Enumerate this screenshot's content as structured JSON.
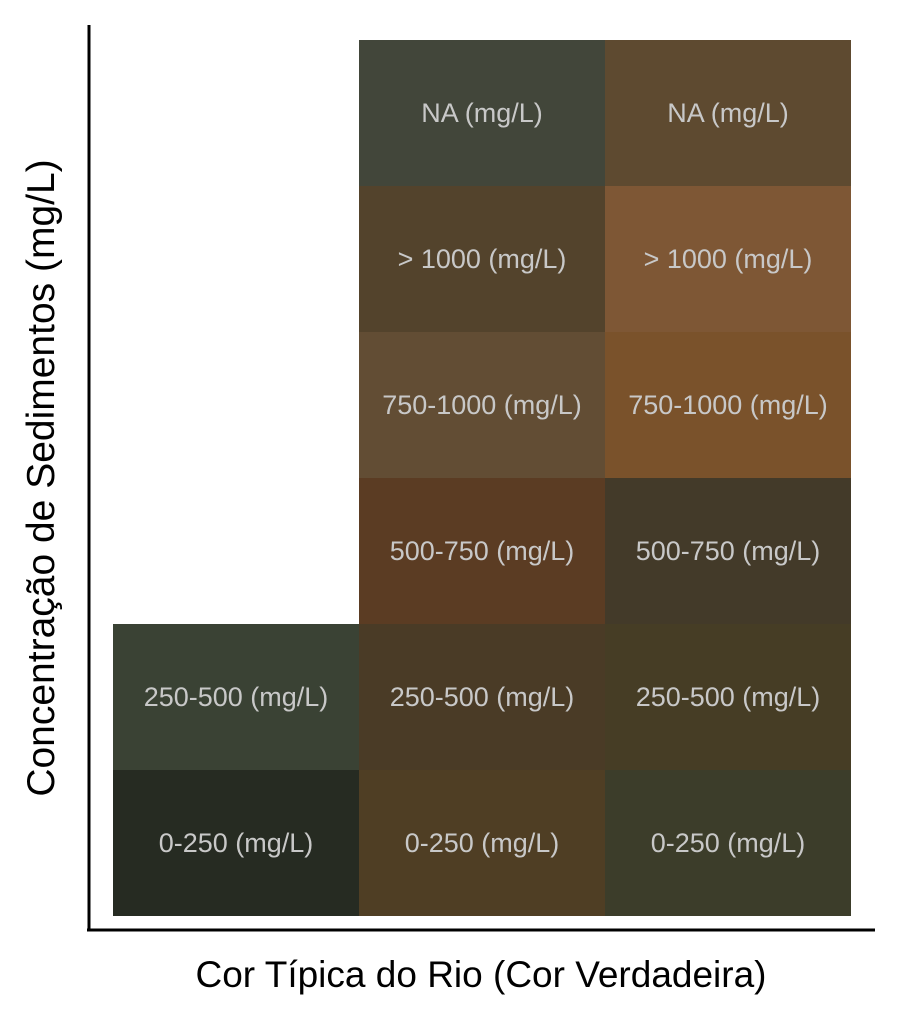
{
  "chart_data": {
    "type": "heatmap",
    "xlabel": "Cor Típica do Rio (Cor Verdadeira)",
    "ylabel": "Concentração de Sedimentos (mg/L)",
    "rows": [
      "0-250 (mg/L)",
      "250-500 (mg/L)",
      "500-750 (mg/L)",
      "750-1000 (mg/L)",
      "> 1000 (mg/L)",
      "NA (mg/L)"
    ],
    "columns": 3,
    "grid": false,
    "cells": [
      {
        "col": 0,
        "row": 0,
        "label": "0-250 (mg/L)",
        "color": "#262b22"
      },
      {
        "col": 0,
        "row": 1,
        "label": "250-500 (mg/L)",
        "color": "#3a4234"
      },
      {
        "col": 1,
        "row": 0,
        "label": "0-250 (mg/L)",
        "color": "#4f3e24"
      },
      {
        "col": 1,
        "row": 1,
        "label": "250-500 (mg/L)",
        "color": "#4a3b26"
      },
      {
        "col": 1,
        "row": 2,
        "label": "500-750 (mg/L)",
        "color": "#5b3c23"
      },
      {
        "col": 1,
        "row": 3,
        "label": "750-1000 (mg/L)",
        "color": "#624d34"
      },
      {
        "col": 1,
        "row": 4,
        "label": "> 1000 (mg/L)",
        "color": "#53432c"
      },
      {
        "col": 1,
        "row": 5,
        "label": "NA (mg/L)",
        "color": "#42463a"
      },
      {
        "col": 2,
        "row": 0,
        "label": "0-250 (mg/L)",
        "color": "#3c3d2a"
      },
      {
        "col": 2,
        "row": 1,
        "label": "250-500 (mg/L)",
        "color": "#463d25"
      },
      {
        "col": 2,
        "row": 2,
        "label": "500-750 (mg/L)",
        "color": "#433a29"
      },
      {
        "col": 2,
        "row": 3,
        "label": "750-1000 (mg/L)",
        "color": "#7a522b"
      },
      {
        "col": 2,
        "row": 4,
        "label": "> 1000 (mg/L)",
        "color": "#7e5735"
      },
      {
        "col": 2,
        "row": 5,
        "label": "NA (mg/L)",
        "color": "#5e4a30"
      }
    ],
    "label_color": "#c8c8c8",
    "axis_color": "#000000"
  }
}
